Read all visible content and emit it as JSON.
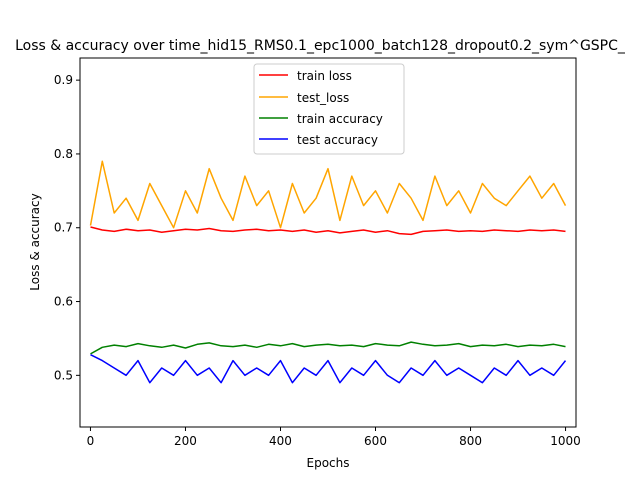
{
  "chart_data": {
    "type": "line",
    "title": "Loss & accuracy over time_hid15_RMS0.1_epc1000_batch128_dropout0.2_sym^GSPC_",
    "xlabel": "Epochs",
    "ylabel": "Loss & accuracy",
    "xlim": [
      -22,
      1022
    ],
    "ylim": [
      0.43,
      0.93
    ],
    "xticks": [
      0,
      200,
      400,
      600,
      800,
      1000
    ],
    "xtick_labels": [
      "0",
      "200",
      "400",
      "600",
      "800",
      "1000"
    ],
    "yticks": [
      0.5,
      0.6,
      0.7,
      0.8,
      0.9
    ],
    "ytick_labels": [
      "0.5",
      "0.6",
      "0.7",
      "0.8",
      "0.9"
    ],
    "grid": false,
    "legend_position": "top-center",
    "x": [
      0,
      25,
      50,
      75,
      100,
      125,
      150,
      175,
      200,
      225,
      250,
      275,
      300,
      325,
      350,
      375,
      400,
      425,
      450,
      475,
      500,
      525,
      550,
      575,
      600,
      625,
      650,
      675,
      700,
      725,
      750,
      775,
      800,
      825,
      850,
      875,
      900,
      925,
      950,
      975,
      1000
    ],
    "series": [
      {
        "name": "train loss",
        "color": "#ff0000",
        "values": [
          0.701,
          0.697,
          0.695,
          0.698,
          0.696,
          0.697,
          0.694,
          0.696,
          0.698,
          0.697,
          0.699,
          0.696,
          0.695,
          0.697,
          0.698,
          0.696,
          0.697,
          0.695,
          0.697,
          0.694,
          0.696,
          0.693,
          0.695,
          0.697,
          0.694,
          0.696,
          0.692,
          0.691,
          0.695,
          0.696,
          0.697,
          0.695,
          0.696,
          0.695,
          0.697,
          0.696,
          0.695,
          0.697,
          0.696,
          0.697,
          0.695
        ]
      },
      {
        "name": "test_loss",
        "color": "#ffa500",
        "values": [
          0.703,
          0.79,
          0.72,
          0.74,
          0.71,
          0.76,
          0.73,
          0.7,
          0.75,
          0.72,
          0.78,
          0.74,
          0.71,
          0.77,
          0.73,
          0.75,
          0.7,
          0.76,
          0.72,
          0.74,
          0.78,
          0.71,
          0.77,
          0.73,
          0.75,
          0.72,
          0.76,
          0.74,
          0.71,
          0.77,
          0.73,
          0.75,
          0.72,
          0.76,
          0.74,
          0.73,
          0.75,
          0.77,
          0.74,
          0.76,
          0.73
        ]
      },
      {
        "name": "train accuracy",
        "color": "#008000",
        "values": [
          0.529,
          0.538,
          0.541,
          0.539,
          0.543,
          0.54,
          0.538,
          0.541,
          0.537,
          0.542,
          0.544,
          0.54,
          0.539,
          0.541,
          0.538,
          0.542,
          0.54,
          0.543,
          0.539,
          0.541,
          0.542,
          0.54,
          0.541,
          0.539,
          0.543,
          0.541,
          0.54,
          0.545,
          0.542,
          0.54,
          0.541,
          0.543,
          0.539,
          0.541,
          0.54,
          0.542,
          0.539,
          0.541,
          0.54,
          0.542,
          0.539
        ]
      },
      {
        "name": "test  accuracy",
        "color": "#0000ff",
        "values": [
          0.528,
          0.52,
          0.51,
          0.5,
          0.52,
          0.49,
          0.51,
          0.5,
          0.52,
          0.5,
          0.51,
          0.49,
          0.52,
          0.5,
          0.51,
          0.5,
          0.52,
          0.49,
          0.51,
          0.5,
          0.52,
          0.49,
          0.51,
          0.5,
          0.52,
          0.5,
          0.49,
          0.51,
          0.5,
          0.52,
          0.5,
          0.51,
          0.5,
          0.49,
          0.51,
          0.5,
          0.52,
          0.5,
          0.51,
          0.5,
          0.52
        ]
      }
    ]
  }
}
